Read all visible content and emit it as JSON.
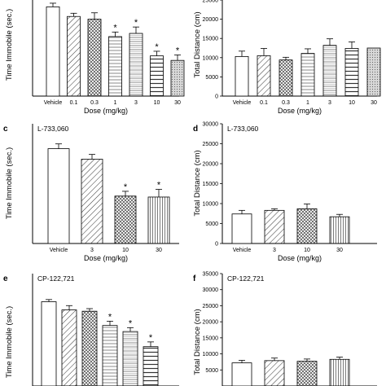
{
  "chart_data": [
    {
      "type": "bar",
      "panel_letter": "",
      "title": "",
      "ylabel": "Time Immobile (sec.)",
      "xlabel": "Dose (mg/kg)",
      "categories": [
        "Vehicle",
        "0.1",
        "0.3",
        "1",
        "3",
        "10",
        "30"
      ],
      "values": [
        195,
        174,
        168,
        130,
        137,
        88,
        78
      ],
      "errors": [
        8,
        7,
        14,
        10,
        14,
        10,
        12
      ],
      "significant": [
        false,
        false,
        false,
        true,
        true,
        true,
        true
      ],
      "patterns": [
        "plain",
        "diag",
        "cross",
        "hlines",
        "hlines2",
        "hlines3",
        "grey"
      ],
      "ylim": [
        0,
        210
      ],
      "yticks": [],
      "sig_marker": "*"
    },
    {
      "type": "bar",
      "panel_letter": "",
      "title": "",
      "ylabel": "Total Distance (cm)",
      "xlabel": "Dose (mg/kg)",
      "categories": [
        "Vehicle",
        "0.1",
        "0.3",
        "1",
        "3",
        "10",
        "30"
      ],
      "values": [
        10300,
        10500,
        9400,
        11100,
        13200,
        12400,
        12500
      ],
      "errors": [
        1400,
        1900,
        700,
        1200,
        1700,
        1700,
        0
      ],
      "significant": [
        false,
        false,
        false,
        false,
        false,
        false,
        false
      ],
      "patterns": [
        "plain",
        "diag",
        "cross",
        "hlines",
        "hlines2",
        "hlines3",
        "grey"
      ],
      "ylim": [
        0,
        25000
      ],
      "yticks": [
        0,
        5000,
        10000,
        15000,
        20000,
        25000
      ],
      "sig_marker": "*"
    },
    {
      "type": "bar",
      "panel_letter": "c",
      "title": "L-733,060",
      "ylabel": "Time Immobile (sec.)",
      "xlabel": "Dose (mg/kg)",
      "categories": [
        "Vehicle",
        "3",
        "10",
        "30"
      ],
      "values": [
        198,
        176,
        99,
        97
      ],
      "errors": [
        10,
        10,
        10,
        16
      ],
      "significant": [
        false,
        false,
        true,
        true
      ],
      "patterns": [
        "plain",
        "diag",
        "cross",
        "vlines"
      ],
      "ylim": [
        0,
        250
      ],
      "yticks": [],
      "sig_marker": "*"
    },
    {
      "type": "bar",
      "panel_letter": "d",
      "title": "L-733,060",
      "ylabel": "Total Distance (cm)",
      "xlabel": "Dose (mg/kg)",
      "categories": [
        "Vehicle",
        "3",
        "10",
        "30"
      ],
      "values": [
        7400,
        8300,
        8700,
        6700
      ],
      "errors": [
        900,
        400,
        1200,
        600
      ],
      "significant": [
        false,
        false,
        false,
        false
      ],
      "patterns": [
        "plain",
        "diag",
        "cross",
        "vlines"
      ],
      "ylim": [
        0,
        30000
      ],
      "yticks": [
        0,
        5000,
        10000,
        15000,
        20000,
        25000,
        30000
      ],
      "sig_marker": "*"
    },
    {
      "type": "bar",
      "panel_letter": "e",
      "title": "CP-122,721",
      "ylabel": "Time Immobile (sec.)",
      "xlabel": "",
      "categories": [
        "",
        "",
        "",
        "",
        "",
        ""
      ],
      "values": [
        195,
        176,
        173,
        140,
        126,
        91
      ],
      "errors": [
        5,
        10,
        6,
        10,
        9,
        11
      ],
      "significant": [
        false,
        false,
        false,
        true,
        true,
        true
      ],
      "patterns": [
        "plain",
        "diag",
        "cross",
        "hlines",
        "hlines2",
        "hlines3"
      ],
      "ylim": [
        0,
        260
      ],
      "yticks": [],
      "sig_marker": "*"
    },
    {
      "type": "bar",
      "panel_letter": "f",
      "title": "CP-122,721",
      "ylabel": "Total Distance (cm)",
      "xlabel": "",
      "categories": [
        "",
        "",
        "",
        ""
      ],
      "values": [
        7200,
        7900,
        7700,
        8300
      ],
      "errors": [
        800,
        800,
        700,
        700
      ],
      "significant": [
        false,
        false,
        false,
        false
      ],
      "patterns": [
        "plain",
        "diag",
        "cross",
        "vlines"
      ],
      "ylim": [
        0,
        35000
      ],
      "yticks": [
        5000,
        10000,
        15000,
        20000,
        25000,
        30000,
        35000
      ],
      "sig_marker": "*"
    }
  ]
}
